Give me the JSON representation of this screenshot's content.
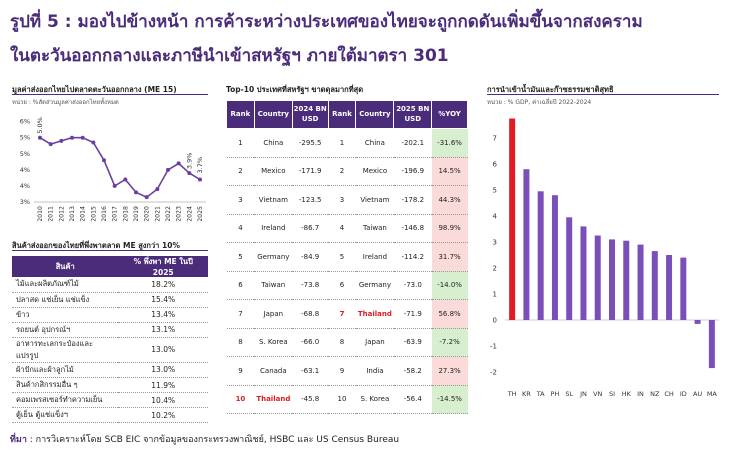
{
  "title": {
    "line1": "รูปที่ 5 : มองไปข้างหน้า การค้าระหว่างประเทศของไทยจะถูกกดดันเพิ่มขึ้นจากสงคราม",
    "line2": "ในตะวันออกกลางและภาษีนำเข้าสหรัฐฯ ภายใต้มาตรา 301"
  },
  "panels": {
    "line_title": "มูลค่าส่งออกไทยไปตลาดตะวันออกกลาง (ME 15)",
    "line_sub": "หน่วย : %สัดส่วนมูลค่าส่งออกไทยทั้งหมด",
    "share_title": "สินค้าส่งออกของไทยที่พึ่งพาตลาด ME สูงกว่า 10%",
    "top10_title": "Top-10 ประเทศที่สหรัฐฯ ขาดดุลมากที่สุด",
    "bar_title": "การนำเข้าน้ำมันและก๊าซธรรมชาติสุทธิ",
    "bar_sub": "หน่วย : % GDP, ค่าเฉลี่ยปี 2022-2024"
  },
  "colors": {
    "purple": "#4a2c7a",
    "red": "#e31b23",
    "line": "#6b3fa0",
    "bar": "#7b4fb8"
  },
  "share_table": {
    "headers": [
      "สินค้า",
      "% พึ่งพา ME ในปี 2025"
    ],
    "rows": [
      [
        "ไม้และผลิตภัณฑ์ไม้",
        "18.2%"
      ],
      [
        "ปลาสด แช่เย็น แช่แข็ง",
        "15.4%"
      ],
      [
        "ข้าว",
        "13.4%"
      ],
      [
        "รถยนต์ อุปกรณ์ฯ",
        "13.1%"
      ],
      [
        "อาหารทะเลกระป๋องและแปรรูป",
        "13.0%"
      ],
      [
        "ผ้าปักและผ้าลูกไม้",
        "13.0%"
      ],
      [
        "สินค้ากสิกรรมอื่น ๆ",
        "11.9%"
      ],
      [
        "คอมเพรสเซอร์ทำความเย็น",
        "10.4%"
      ],
      [
        "ตู้เย็น ตู้แช่แข็งฯ",
        "10.2%"
      ]
    ]
  },
  "top10": {
    "headers": [
      "Rank",
      "Country",
      "2024 BN USD",
      "Rank",
      "Country",
      "2025 BN USD",
      "%YOY"
    ],
    "rows": [
      [
        "1",
        "China",
        "-295.5",
        "1",
        "China",
        "-202.1",
        "-31.6%"
      ],
      [
        "2",
        "Mexico",
        "-171.9",
        "2",
        "Mexico",
        "-196.9",
        "14.5%"
      ],
      [
        "3",
        "Vietnam",
        "-123.5",
        "3",
        "Vietnam",
        "-178.2",
        "44.3%"
      ],
      [
        "4",
        "Ireland",
        "-86.7",
        "4",
        "Taiwan",
        "-146.8",
        "98.9%"
      ],
      [
        "5",
        "Germany",
        "-84.9",
        "5",
        "Ireland",
        "-114.2",
        "31.7%"
      ],
      [
        "6",
        "Taiwan",
        "-73.8",
        "6",
        "Germany",
        "-73.0",
        "-14.0%"
      ],
      [
        "7",
        "Japan",
        "-68.8",
        "7",
        "Thailand",
        "-71.9",
        "56.8%"
      ],
      [
        "8",
        "S. Korea",
        "-66.0",
        "8",
        "Japan",
        "-63.9",
        "-7.2%"
      ],
      [
        "9",
        "Canada",
        "-63.1",
        "9",
        "India",
        "-58.2",
        "27.3%"
      ],
      [
        "10",
        "Thailand",
        "-45.8",
        "10",
        "S. Korea",
        "-56.4",
        "-14.5%"
      ]
    ]
  },
  "chart_data": [
    {
      "type": "line",
      "title": "มูลค่าส่งออกไทยไปตลาดตะวันออกกลาง (ME 15)",
      "ylabel": "หน่วย : %สัดส่วนมูลค่าส่งออกไทยทั้งหมด",
      "x": [
        "2010",
        "2011",
        "2012",
        "2013",
        "2014",
        "2015",
        "2016",
        "2017",
        "2018",
        "2019",
        "2020",
        "2021",
        "2022",
        "2023",
        "2024",
        "2025"
      ],
      "series": [
        {
          "values": [
            5.0,
            4.8,
            4.9,
            5.0,
            5.0,
            4.85,
            4.3,
            3.5,
            3.7,
            3.3,
            3.15,
            3.4,
            4.0,
            4.2,
            3.9,
            3.7
          ]
        }
      ],
      "y_tick_labels": [
        "3%",
        "4%",
        "4%",
        "5%",
        "5%",
        "6%"
      ],
      "ylim": [
        3.0,
        5.8
      ],
      "annotations": [
        "5.0%",
        "3.9%",
        "3.7%"
      ]
    },
    {
      "type": "bar",
      "title": "การนำเข้าน้ำมันและก๊าซธรรมชาติสุทธิ",
      "ylabel": "หน่วย : % GDP, ค่าเฉลี่ยปี 2022-2024",
      "categories": [
        "TH",
        "KR",
        "TA",
        "PH",
        "SL",
        "JN",
        "VN",
        "SI",
        "HK",
        "IN",
        "NZ",
        "CH",
        "ID",
        "AU",
        "MA"
      ],
      "values": [
        7.75,
        5.8,
        4.95,
        4.8,
        3.95,
        3.6,
        3.25,
        3.1,
        3.05,
        2.9,
        2.65,
        2.5,
        2.4,
        -0.15,
        -1.85
      ],
      "highlight": "TH",
      "ylim": [
        -2,
        8
      ],
      "y_ticks": [
        -2,
        -1,
        0,
        1,
        2,
        3,
        4,
        5,
        6,
        7
      ]
    }
  ],
  "footer": {
    "label": "ที่มา",
    "text": " : การวิเคราะห์โดย SCB EIC จากข้อมูลของกระทรวงพาณิชย์, HSBC และ US Census Bureau"
  }
}
